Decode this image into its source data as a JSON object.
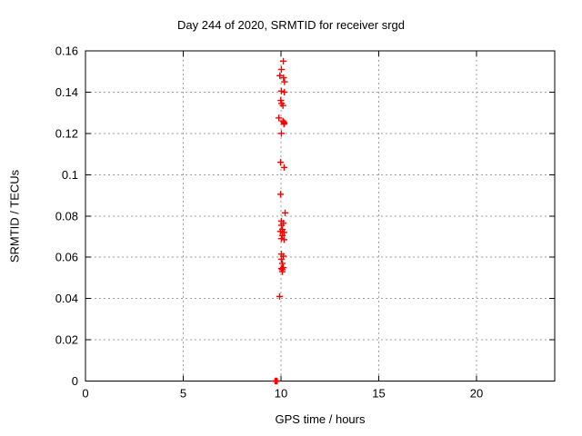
{
  "chart_data": {
    "type": "scatter",
    "title": "Day 244 of 2020, SRMTID for receiver srgd",
    "xlabel": "GPS time / hours",
    "ylabel": "SRMTID / TECUs",
    "xlim": [
      0,
      24
    ],
    "ylim": [
      0,
      0.16
    ],
    "grid": true,
    "legend": false,
    "marker": "plus",
    "xticks": [
      {
        "value": 0,
        "label": "0"
      },
      {
        "value": 5,
        "label": "5"
      },
      {
        "value": 10,
        "label": "10"
      },
      {
        "value": 15,
        "label": "15"
      },
      {
        "value": 20,
        "label": "20"
      }
    ],
    "yticks": [
      {
        "value": 0,
        "label": "0"
      },
      {
        "value": 0.02,
        "label": "0.02"
      },
      {
        "value": 0.04,
        "label": "0.04"
      },
      {
        "value": 0.06,
        "label": "0.06"
      },
      {
        "value": 0.08,
        "label": "0.08"
      },
      {
        "value": 0.1,
        "label": "0.1"
      },
      {
        "value": 0.12,
        "label": "0.12"
      },
      {
        "value": 0.14,
        "label": "0.14"
      },
      {
        "value": 0.16,
        "label": "0.16"
      }
    ],
    "series": [
      {
        "name": "SRMTID",
        "points": [
          [
            10.12,
            0.155
          ],
          [
            10.02,
            0.151
          ],
          [
            9.94,
            0.148
          ],
          [
            10.13,
            0.147
          ],
          [
            10.18,
            0.145
          ],
          [
            10.02,
            0.1405
          ],
          [
            10.17,
            0.14
          ],
          [
            9.99,
            0.136
          ],
          [
            10.03,
            0.1345
          ],
          [
            10.1,
            0.1335
          ],
          [
            9.89,
            0.1275
          ],
          [
            10.1,
            0.126
          ],
          [
            10.14,
            0.1255
          ],
          [
            10.17,
            0.125
          ],
          [
            10.15,
            0.1245
          ],
          [
            10.02,
            0.12
          ],
          [
            9.98,
            0.106
          ],
          [
            10.16,
            0.1035
          ],
          [
            9.98,
            0.0905
          ],
          [
            10.21,
            0.0815
          ],
          [
            10.02,
            0.0775
          ],
          [
            10.12,
            0.0765
          ],
          [
            10.02,
            0.0755
          ],
          [
            10.07,
            0.0735
          ],
          [
            9.97,
            0.0725
          ],
          [
            10.16,
            0.072
          ],
          [
            10.07,
            0.0705
          ],
          [
            10.02,
            0.069
          ],
          [
            10.16,
            0.0685
          ],
          [
            10.02,
            0.0615
          ],
          [
            10.12,
            0.0605
          ],
          [
            10.02,
            0.059
          ],
          [
            10.07,
            0.057
          ],
          [
            10.12,
            0.055
          ],
          [
            10.02,
            0.0545
          ],
          [
            10.07,
            0.054
          ],
          [
            10.07,
            0.053
          ],
          [
            9.93,
            0.041
          ],
          [
            9.7,
            0.0
          ],
          [
            9.72,
            0.0
          ],
          [
            9.74,
            0.0
          ],
          [
            9.76,
            0.0
          ],
          [
            9.78,
            0.0
          ],
          [
            9.8,
            0.0
          ]
        ]
      }
    ]
  },
  "colors": {
    "marker": "#ff0000",
    "grid": "#9e9e9e",
    "border": "#000000",
    "background": "#ffffff",
    "text": "#000000"
  }
}
